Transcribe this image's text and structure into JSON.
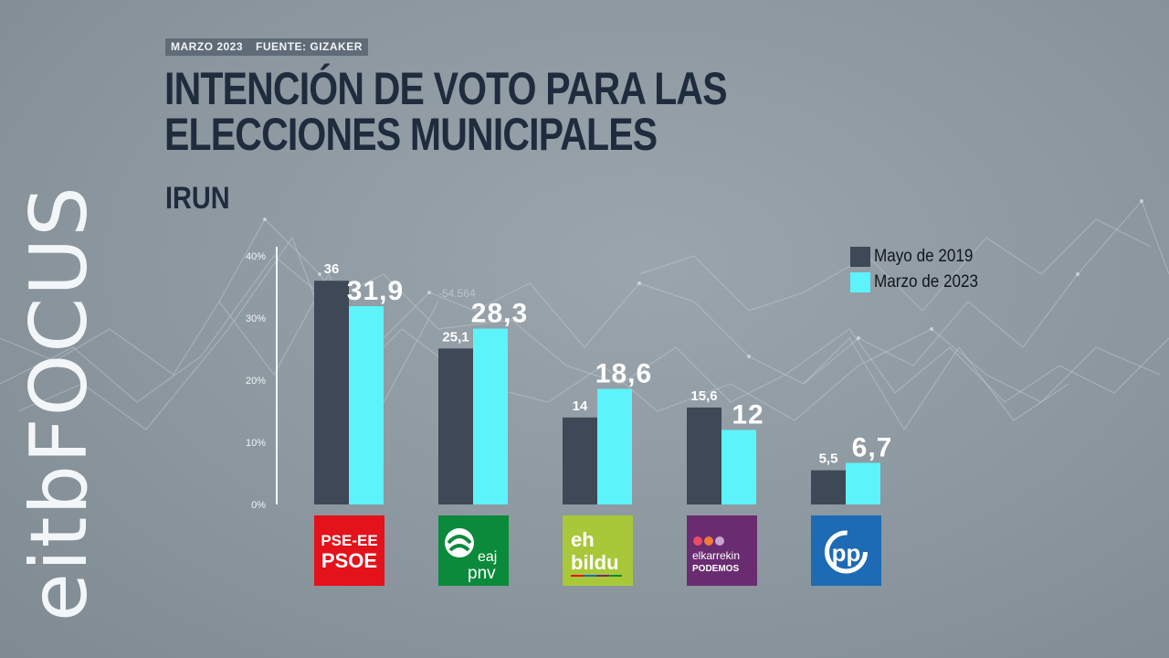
{
  "brand": {
    "part1": "eitb",
    "part2": "FOCUS"
  },
  "meta": {
    "date": "MARZO 2023",
    "source": "FUENTE: GIZAKER"
  },
  "background_annotation": "-54.564",
  "chart_data": {
    "type": "bar",
    "title": "INTENCIÓN DE VOTO PARA LAS ELECCIONES MUNICIPALES",
    "subtitle": "IRUN",
    "categories": [
      "PSE-EE PSOE",
      "EAJ PNV",
      "EH Bildu",
      "Elkarrekin Podemos",
      "PP"
    ],
    "series": [
      {
        "name": "Mayo de 2019",
        "color": "#3e4856",
        "values": [
          36,
          25.1,
          14,
          15.6,
          5.5
        ],
        "labels": [
          "36",
          "25,1",
          "14",
          "15,6",
          "5,5"
        ]
      },
      {
        "name": "Marzo de 2023",
        "color": "#5cf3fb",
        "values": [
          31.9,
          28.3,
          18.6,
          12,
          6.7
        ],
        "labels": [
          "31,9",
          "28,3",
          "18,6",
          "12",
          "6,7"
        ]
      }
    ],
    "ylim": [
      0,
      40
    ],
    "yticks": [
      "0%",
      "10%",
      "20%",
      "30%",
      "40%"
    ],
    "legend_position": "top-right",
    "grid": false
  },
  "logos": [
    {
      "id": "psoe",
      "line1": "PSE-EE",
      "line2": "PSOE",
      "bg": "#e3121b"
    },
    {
      "id": "pnv",
      "line1": "eaj",
      "line2": "pnv",
      "bg": "#0a8a3a"
    },
    {
      "id": "bildu",
      "line1": "eh",
      "line2": "bildu",
      "bg": "#a8c83a"
    },
    {
      "id": "podemos",
      "line1": "elkarrekin",
      "line2": "PODEMOS",
      "bg": "#6a2c70"
    },
    {
      "id": "pp",
      "line1": "pp",
      "bg": "#1d6bb5"
    }
  ]
}
